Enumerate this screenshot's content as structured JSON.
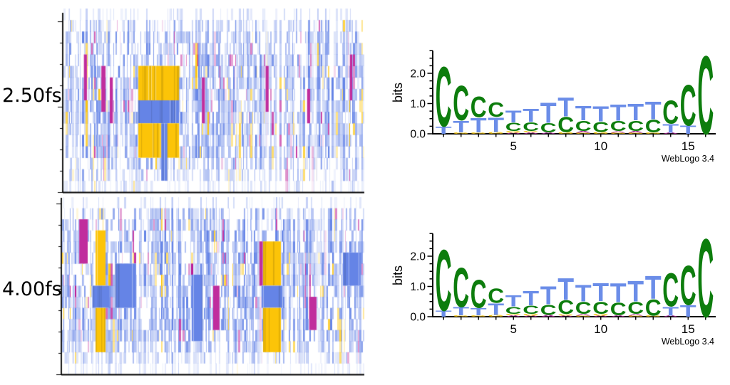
{
  "panels": [
    {
      "time_label": "2.50fs",
      "alignment_chart": 0,
      "logo_chart": 1
    },
    {
      "time_label": "4.00fs",
      "alignment_chart": 2,
      "logo_chart": 3
    }
  ],
  "logo_axis": {
    "ylabel": "bits",
    "ytick_labels": [
      "0.0",
      "1.0",
      "2.0"
    ],
    "xtick_labels": [
      "5",
      "10",
      "15"
    ],
    "xtick_positions": [
      5,
      10,
      15
    ],
    "ymax_bits": 2.75,
    "n_positions": 16,
    "credit": "WebLogo 3.4"
  },
  "colors": {
    "align_T_blue": "#6584e6",
    "align_G_yellow": "#fcc408",
    "align_A_magenta": "#bb1b95",
    "align_C_white": "#ffffff",
    "logo_C_green": "#0d7d0d",
    "logo_T_blue": "#6b8de8",
    "logo_G_yellow": "#f2c20e",
    "logo_A_magenta": "#a52a93",
    "axis_black": "#000000"
  },
  "chart_data": [
    {
      "type": "heatmap",
      "name": "alignment-2.50fs",
      "description": "Per-trajectory sequence alignment at t=2.50fs; columns are samples, 16 rows are sequence positions; colors: blue=T, yellow=G, magenta=A, white=C",
      "rows": 16,
      "n_columns_approx": 230,
      "seed": 907121,
      "gap_prob": 0.05,
      "palette": {
        "T": "#6584e6",
        "G": "#fcc408",
        "A": "#bb1b95",
        "C": "#ffffff"
      },
      "row_probs": [
        [
          0.74,
          0.26,
          0.0,
          0.0,
          0.45
        ],
        [
          0.44,
          0.52,
          0.02,
          0.02,
          0.75
        ],
        [
          0.38,
          0.57,
          0.02,
          0.03,
          0.9
        ],
        [
          0.38,
          0.56,
          0.03,
          0.03,
          1.0
        ],
        [
          0.3,
          0.61,
          0.04,
          0.05,
          1.0
        ],
        [
          0.3,
          0.6,
          0.05,
          0.05,
          1.0
        ],
        [
          0.27,
          0.63,
          0.05,
          0.05,
          1.0
        ],
        [
          0.3,
          0.61,
          0.04,
          0.05,
          1.0
        ],
        [
          0.29,
          0.64,
          0.03,
          0.04,
          1.0
        ],
        [
          0.29,
          0.64,
          0.03,
          0.04,
          1.0
        ],
        [
          0.3,
          0.61,
          0.05,
          0.04,
          1.0
        ],
        [
          0.31,
          0.62,
          0.03,
          0.04,
          1.0
        ],
        [
          0.32,
          0.6,
          0.04,
          0.04,
          0.95
        ],
        [
          0.44,
          0.51,
          0.03,
          0.02,
          0.8
        ],
        [
          0.52,
          0.45,
          0.02,
          0.01,
          0.65
        ],
        [
          0.7,
          0.29,
          0.01,
          0.0,
          0.45
        ]
      ],
      "features": [
        {
          "letter": "G",
          "x0": 0.249,
          "x1": 0.384,
          "r0": 6,
          "r1": 8
        },
        {
          "letter": "T",
          "x0": 0.249,
          "x1": 0.384,
          "r0": 9,
          "r1": 10
        },
        {
          "letter": "G",
          "x0": 0.249,
          "x1": 0.384,
          "r0": 11,
          "r1": 13
        },
        {
          "letter": "T",
          "x0": 0.325,
          "x1": 0.345,
          "r0": 11,
          "r1": 15
        },
        {
          "letter": "A",
          "x0": 0.068,
          "x1": 0.078,
          "r0": 5,
          "r1": 8
        },
        {
          "letter": "A",
          "x0": 0.126,
          "x1": 0.14,
          "r0": 6,
          "r1": 9
        },
        {
          "letter": "A",
          "x0": 0.154,
          "x1": 0.164,
          "r0": 7,
          "r1": 10
        },
        {
          "letter": "A",
          "x0": 0.46,
          "x1": 0.47,
          "r0": 7,
          "r1": 10
        },
        {
          "letter": "A",
          "x0": 0.672,
          "x1": 0.682,
          "r0": 6,
          "r1": 9
        },
        {
          "letter": "A",
          "x0": 0.81,
          "x1": 0.82,
          "r0": 8,
          "r1": 10
        },
        {
          "letter": "A",
          "x0": 0.952,
          "x1": 0.96,
          "r0": 5,
          "r1": 8
        }
      ]
    },
    {
      "type": "bar",
      "subtype": "sequence-logo",
      "name": "logo-2.50fs",
      "ylabel": "bits",
      "ylim": [
        0,
        2.75
      ],
      "credit": "WebLogo 3.4",
      "stacks": [
        [
          [
            "C",
            2.05
          ],
          [
            "T",
            0.25
          ]
        ],
        [
          [
            "C",
            1.2
          ],
          [
            "T",
            0.4
          ],
          [
            "G",
            0.05
          ]
        ],
        [
          [
            "C",
            0.72
          ],
          [
            "T",
            0.5
          ],
          [
            "G",
            0.05
          ]
        ],
        [
          [
            "C",
            0.5
          ],
          [
            "T",
            0.5
          ],
          [
            "G",
            0.06
          ]
        ],
        [
          [
            "T",
            0.42
          ],
          [
            "C",
            0.28
          ],
          [
            "G",
            0.06
          ],
          [
            "A",
            0.04
          ]
        ],
        [
          [
            "T",
            0.45
          ],
          [
            "C",
            0.3
          ],
          [
            "G",
            0.05
          ],
          [
            "A",
            0.05
          ]
        ],
        [
          [
            "T",
            0.7
          ],
          [
            "C",
            0.32
          ],
          [
            "A",
            0.05
          ]
        ],
        [
          [
            "T",
            0.65
          ],
          [
            "C",
            0.52
          ],
          [
            "G",
            0.06
          ]
        ],
        [
          [
            "T",
            0.5
          ],
          [
            "C",
            0.35
          ],
          [
            "A",
            0.06
          ],
          [
            "G",
            0.04
          ]
        ],
        [
          [
            "T",
            0.52
          ],
          [
            "C",
            0.35
          ],
          [
            "G",
            0.06
          ]
        ],
        [
          [
            "T",
            0.55
          ],
          [
            "C",
            0.35
          ],
          [
            "A",
            0.05
          ],
          [
            "G",
            0.04
          ]
        ],
        [
          [
            "T",
            0.58
          ],
          [
            "C",
            0.35
          ],
          [
            "A",
            0.06
          ],
          [
            "G",
            0.04
          ]
        ],
        [
          [
            "T",
            0.6
          ],
          [
            "C",
            0.43
          ],
          [
            "G",
            0.05
          ]
        ],
        [
          [
            "C",
            0.8
          ],
          [
            "T",
            0.3
          ],
          [
            "A",
            0.04
          ]
        ],
        [
          [
            "C",
            1.4
          ],
          [
            "T",
            0.28
          ]
        ],
        [
          [
            "C",
            2.7
          ]
        ]
      ]
    },
    {
      "type": "heatmap",
      "name": "alignment-4.00fs",
      "description": "Per-trajectory sequence alignment at t=4.00fs; columns are samples, 16 rows are sequence positions; colors: blue=T, yellow=G, magenta=A, white=C",
      "rows": 16,
      "n_columns_approx": 230,
      "seed": 441779,
      "gap_prob": 0.05,
      "palette": {
        "T": "#6584e6",
        "G": "#fcc408",
        "A": "#bb1b95",
        "C": "#ffffff"
      },
      "row_probs": [
        [
          0.76,
          0.24,
          0.0,
          0.0,
          0.4
        ],
        [
          0.42,
          0.54,
          0.02,
          0.02,
          0.8
        ],
        [
          0.36,
          0.58,
          0.03,
          0.03,
          0.95
        ],
        [
          0.34,
          0.6,
          0.03,
          0.03,
          1.0
        ],
        [
          0.3,
          0.62,
          0.04,
          0.04,
          1.0
        ],
        [
          0.28,
          0.63,
          0.04,
          0.05,
          1.0
        ],
        [
          0.27,
          0.64,
          0.04,
          0.05,
          1.0
        ],
        [
          0.28,
          0.62,
          0.04,
          0.06,
          1.0
        ],
        [
          0.29,
          0.63,
          0.04,
          0.04,
          1.0
        ],
        [
          0.29,
          0.63,
          0.04,
          0.04,
          1.0
        ],
        [
          0.3,
          0.62,
          0.04,
          0.04,
          1.0
        ],
        [
          0.31,
          0.61,
          0.04,
          0.04,
          1.0
        ],
        [
          0.33,
          0.6,
          0.03,
          0.04,
          0.95
        ],
        [
          0.45,
          0.5,
          0.03,
          0.02,
          0.8
        ],
        [
          0.55,
          0.43,
          0.01,
          0.01,
          0.6
        ],
        [
          0.75,
          0.24,
          0.01,
          0.0,
          0.35
        ]
      ],
      "features": [
        {
          "letter": "A",
          "x0": 0.057,
          "x1": 0.085,
          "r0": 3,
          "r1": 6
        },
        {
          "letter": "G",
          "x0": 0.111,
          "x1": 0.144,
          "r0": 4,
          "r1": 8
        },
        {
          "letter": "T",
          "x0": 0.099,
          "x1": 0.156,
          "r0": 9,
          "r1": 10
        },
        {
          "letter": "G",
          "x0": 0.111,
          "x1": 0.144,
          "r0": 11,
          "r1": 14
        },
        {
          "letter": "T",
          "x0": 0.175,
          "x1": 0.245,
          "r0": 7,
          "r1": 10
        },
        {
          "letter": "T",
          "x0": 0.429,
          "x1": 0.465,
          "r0": 8,
          "r1": 13
        },
        {
          "letter": "A",
          "x0": 0.5,
          "x1": 0.521,
          "r0": 9,
          "r1": 12
        },
        {
          "letter": "A",
          "x0": 0.653,
          "x1": 0.664,
          "r0": 5,
          "r1": 8
        },
        {
          "letter": "G",
          "x0": 0.665,
          "x1": 0.724,
          "r0": 5,
          "r1": 8
        },
        {
          "letter": "T",
          "x0": 0.66,
          "x1": 0.73,
          "r0": 9,
          "r1": 10
        },
        {
          "letter": "G",
          "x0": 0.665,
          "x1": 0.724,
          "r0": 11,
          "r1": 14
        },
        {
          "letter": "A",
          "x0": 0.818,
          "x1": 0.842,
          "r0": 10,
          "r1": 12
        },
        {
          "letter": "T",
          "x0": 0.929,
          "x1": 0.988,
          "r0": 6,
          "r1": 8
        }
      ]
    },
    {
      "type": "bar",
      "subtype": "sequence-logo",
      "name": "logo-4.00fs",
      "ylabel": "bits",
      "ylim": [
        0,
        2.75
      ],
      "credit": "WebLogo 3.4",
      "stacks": [
        [
          [
            "C",
            2.1
          ],
          [
            "T",
            0.2
          ]
        ],
        [
          [
            "C",
            1.35
          ],
          [
            "T",
            0.28
          ],
          [
            "G",
            0.05
          ]
        ],
        [
          [
            "C",
            0.97
          ],
          [
            "T",
            0.25
          ],
          [
            "G",
            0.05
          ]
        ],
        [
          [
            "C",
            0.5
          ],
          [
            "T",
            0.4
          ],
          [
            "G",
            0.06
          ]
        ],
        [
          [
            "T",
            0.38
          ],
          [
            "C",
            0.24
          ],
          [
            "G",
            0.05
          ],
          [
            "A",
            0.05
          ]
        ],
        [
          [
            "T",
            0.5
          ],
          [
            "C",
            0.28
          ],
          [
            "G",
            0.06
          ],
          [
            "A",
            0.04
          ]
        ],
        [
          [
            "T",
            0.62
          ],
          [
            "C",
            0.35
          ],
          [
            "A",
            0.06
          ]
        ],
        [
          [
            "T",
            0.75
          ],
          [
            "C",
            0.48
          ],
          [
            "G",
            0.05
          ],
          [
            "A",
            0.04
          ]
        ],
        [
          [
            "T",
            0.58
          ],
          [
            "C",
            0.42
          ],
          [
            "A",
            0.05
          ],
          [
            "G",
            0.04
          ]
        ],
        [
          [
            "T",
            0.62
          ],
          [
            "C",
            0.42
          ],
          [
            "G",
            0.06
          ],
          [
            "A",
            0.04
          ]
        ],
        [
          [
            "T",
            0.66
          ],
          [
            "C",
            0.43
          ],
          [
            "A",
            0.05
          ]
        ],
        [
          [
            "T",
            0.72
          ],
          [
            "C",
            0.42
          ],
          [
            "A",
            0.05
          ],
          [
            "G",
            0.04
          ]
        ],
        [
          [
            "T",
            0.8
          ],
          [
            "C",
            0.55
          ],
          [
            "G",
            0.04
          ]
        ],
        [
          [
            "C",
            1.15
          ],
          [
            "T",
            0.3
          ],
          [
            "A",
            0.04
          ]
        ],
        [
          [
            "C",
            1.35
          ],
          [
            "T",
            0.4
          ]
        ],
        [
          [
            "C",
            2.7
          ]
        ]
      ]
    }
  ]
}
